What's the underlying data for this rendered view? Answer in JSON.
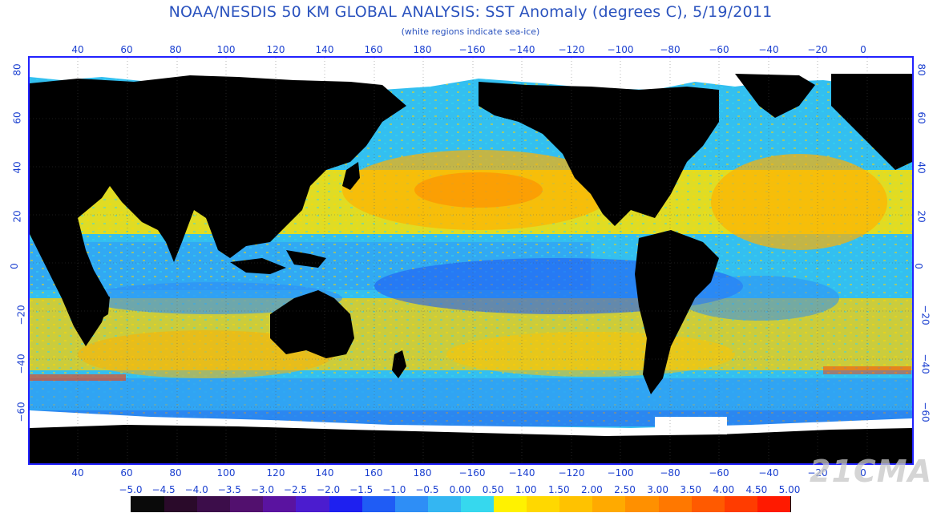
{
  "title": "NOAA/NESDIS 50 KM GLOBAL ANALYSIS: SST Anomaly (degrees C), 5/19/2011",
  "subtitle": "(white regions indicate sea-ice)",
  "lon_labels": [
    "40",
    "60",
    "80",
    "100",
    "120",
    "140",
    "160",
    "180",
    "−160",
    "−140",
    "−120",
    "−100",
    "−80",
    "−60",
    "−40",
    "−20",
    "0"
  ],
  "lat_labels": [
    "80",
    "60",
    "40",
    "20",
    "0",
    "−20",
    "−40",
    "−60"
  ],
  "scale_labels": [
    "−5.0",
    "−4.5",
    "−4.0",
    "−3.5",
    "−3.0",
    "−2.5",
    "−2.0",
    "−1.5",
    "−1.0",
    "−0.5",
    "0.00",
    "0.50",
    "1.00",
    "1.50",
    "2.00",
    "2.50",
    "3.00",
    "3.50",
    "4.00",
    "4.50",
    "5.00"
  ],
  "scale_colors": [
    "#0a0a0a",
    "#2a0a2a",
    "#3c0d4a",
    "#52106e",
    "#5a13a0",
    "#4b1ccf",
    "#1e20f0",
    "#1f5cf5",
    "#2e8ef6",
    "#34b6f2",
    "#36d8ee",
    "#fff200",
    "#ffd800",
    "#ffc200",
    "#ffaa00",
    "#ff9000",
    "#ff7800",
    "#ff5a00",
    "#ff3c00",
    "#ff1a00"
  ],
  "land_color": "#000000",
  "ice_color": "#ffffff",
  "axis_color": "#1a3fd0",
  "watermark": "21CMA"
}
